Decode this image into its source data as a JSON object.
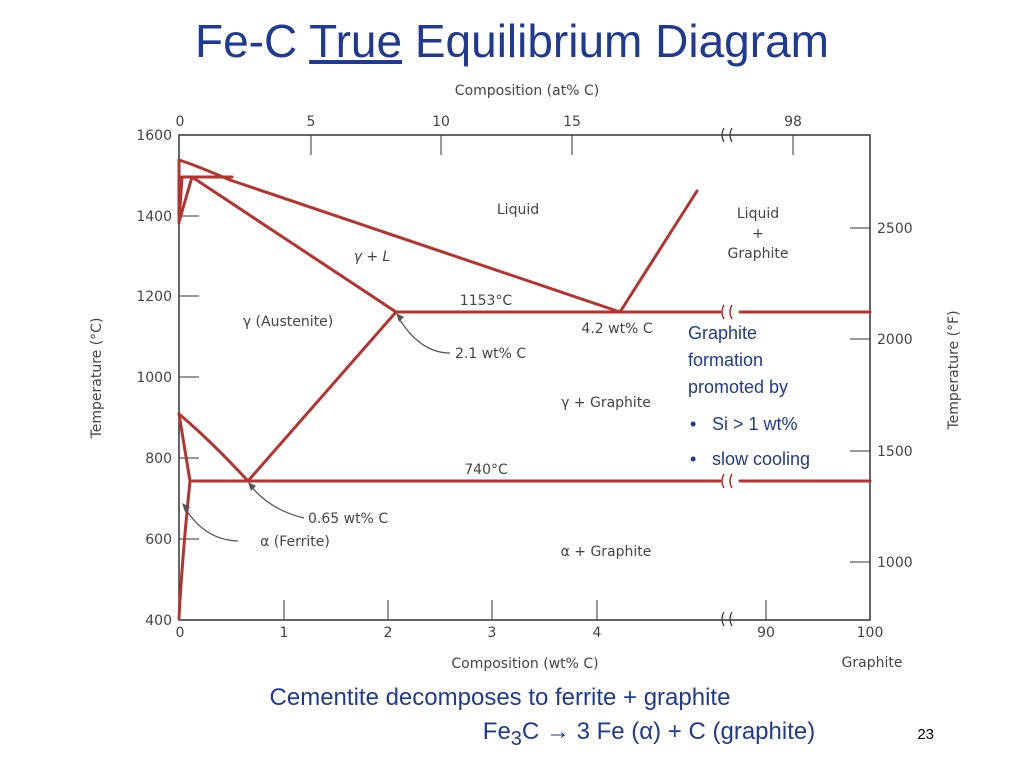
{
  "slide": {
    "title_part1": "Fe-C ",
    "title_part2": "True",
    "title_part3": " Equilibrium Diagram",
    "page_number": "23"
  },
  "diagram": {
    "top_axis_title": "Composition (at% C)",
    "top_ticks": [
      "0",
      "5",
      "10",
      "15",
      "98"
    ],
    "bottom_axis_title": "Composition (wt% C)",
    "bottom_ticks": [
      "0",
      "1",
      "2",
      "3",
      "4",
      "90",
      "100"
    ],
    "bottom_end_label": "Graphite",
    "left_axis_title": "Temperature (°C)",
    "left_ticks": [
      "1600",
      "1400",
      "1200",
      "1000",
      "800",
      "600",
      "400"
    ],
    "right_axis_title": "Temperature (°F)",
    "right_ticks": [
      "2500",
      "2000",
      "1500",
      "1000"
    ],
    "regions": {
      "liquid": "Liquid",
      "gamma_l": "γ + L",
      "austenite": "γ (Austenite)",
      "gamma_graphite": "γ + Graphite",
      "alpha_graphite": "α + Graphite",
      "ferrite": "α (Ferrite)",
      "liquid_graphite_1": "Liquid",
      "liquid_graphite_2": "+",
      "liquid_graphite_3": "Graphite"
    },
    "annotations": {
      "eutectic_temp": "1153°C",
      "eutectic_comp": "4.2 wt% C",
      "gamma_max": "2.1 wt% C",
      "eutectoid_temp": "740°C",
      "eutectoid_comp": "0.65 wt% C"
    },
    "colors": {
      "phase_line": "#b5332e",
      "frame": "#333333",
      "text": "#444444"
    }
  },
  "note": {
    "line1": "Graphite",
    "line2": "formation",
    "line3": "promoted by",
    "bullet1": "Si > 1 wt%",
    "bullet2": "slow cooling"
  },
  "caption": {
    "line1": "Cementite decomposes to ferrite + graphite",
    "line2_pre": "Fe",
    "line2_sub": "3",
    "line2_post": "C → 3 Fe (α) + C (graphite)"
  }
}
